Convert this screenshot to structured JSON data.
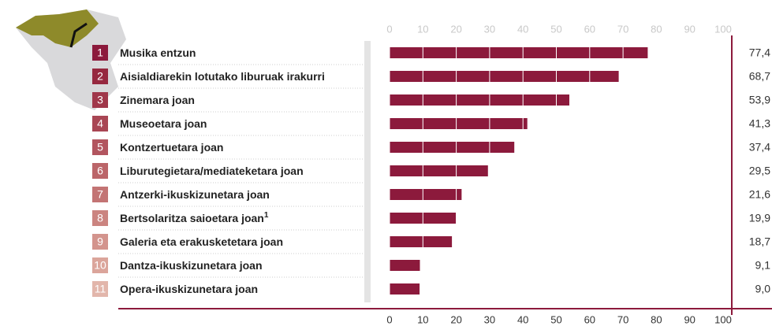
{
  "chart_data": {
    "type": "bar",
    "orientation": "horizontal",
    "ranks": [
      1,
      2,
      3,
      4,
      5,
      6,
      7,
      8,
      9,
      10,
      11
    ],
    "categories": [
      "Musika entzun",
      "Aisialdiarekin lotutako liburuak irakurri",
      "Zinemara joan",
      "Museoetara joan",
      "Kontzertuetara joan",
      "Liburutegietara/mediateketara joan",
      "Antzerki-ikuskizunetara joan",
      "Bertsolaritza saioetara joan",
      "Galeria eta erakusketetara joan",
      "Dantza-ikuskizunetara joan",
      "Opera-ikuskizunetara joan"
    ],
    "category_notes": {
      "7": "1"
    },
    "values": [
      77.4,
      68.7,
      53.9,
      41.3,
      37.4,
      29.5,
      21.6,
      19.9,
      18.7,
      9.1,
      9.0
    ],
    "value_labels": [
      "77,4",
      "68,7",
      "53,9",
      "41,3",
      "37,4",
      "29,5",
      "21,6",
      "19,9",
      "18,7",
      "9,1",
      "9,0"
    ],
    "color": "#8c1a3c",
    "rank_colors": [
      "#8c1a3c",
      "#96283f",
      "#a0374a",
      "#a94654",
      "#b2555f",
      "#bb6569",
      "#c37474",
      "#cb8480",
      "#d3948d",
      "#dba59b",
      "#e2b6ab"
    ],
    "xlim": [
      0,
      100
    ],
    "xticks": [
      0,
      10,
      20,
      30,
      40,
      50,
      60,
      70,
      80,
      90,
      100
    ]
  }
}
